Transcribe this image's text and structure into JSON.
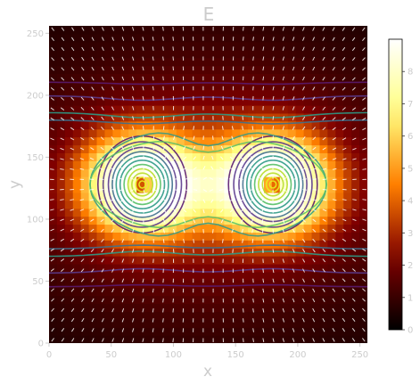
{
  "chart_data": {
    "type": "heatmap",
    "title": "E",
    "xlabel": "x",
    "ylabel": "y",
    "xlim": [
      0,
      256
    ],
    "ylim": [
      0,
      256
    ],
    "xticks": [
      0,
      50,
      100,
      150,
      200,
      250
    ],
    "yticks": [
      0,
      50,
      100,
      150,
      200,
      250
    ],
    "colormap": "afmhot",
    "colorbar": {
      "min": 0,
      "max": 9,
      "ticks": [
        0,
        1,
        2,
        3,
        4,
        5,
        6,
        7,
        8
      ]
    },
    "sources": [
      {
        "x": 75,
        "y": 128
      },
      {
        "x": 180,
        "y": 128
      }
    ],
    "overlays": [
      "contour",
      "vector-field"
    ],
    "grid": false
  },
  "colors": {
    "axis_text": "#cccccc",
    "vector": "#ffffff",
    "colormap_stops": [
      "#000000",
      "#800000",
      "#ff7f00",
      "#ffff80",
      "#ffffff"
    ],
    "contour_colors": [
      "#5a1a6e",
      "#5b3a8c",
      "#3f6f8c",
      "#2e9a86",
      "#56c066",
      "#b8de29",
      "#e8f020"
    ]
  }
}
